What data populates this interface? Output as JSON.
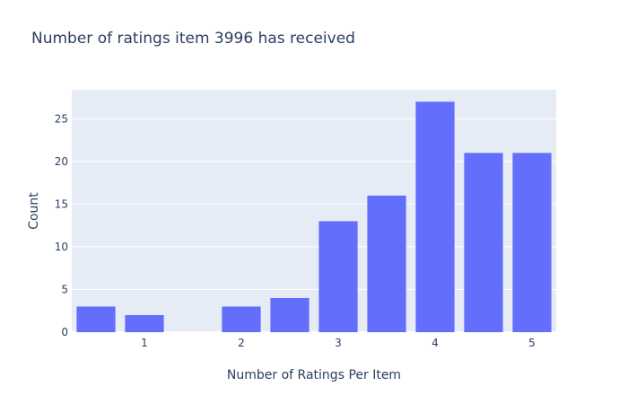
{
  "chart_data": {
    "type": "bar",
    "title": "Number of ratings item 3996 has received",
    "xlabel": "Number of Ratings Per Item",
    "ylabel": "Count",
    "x": [
      0.5,
      1.0,
      2.0,
      2.5,
      3.0,
      3.5,
      4.0,
      4.5,
      5.0
    ],
    "values": [
      3,
      2,
      3,
      4,
      13,
      16,
      27,
      21,
      21
    ],
    "xticks": [
      1,
      2,
      3,
      4,
      5
    ],
    "yticks": [
      0,
      5,
      10,
      15,
      20,
      25
    ],
    "xlim": [
      0.25,
      5.25
    ],
    "ylim": [
      0,
      28.4
    ],
    "bar_color": "#636efa",
    "plot_bg": "#e5ecf6",
    "grid": true
  }
}
